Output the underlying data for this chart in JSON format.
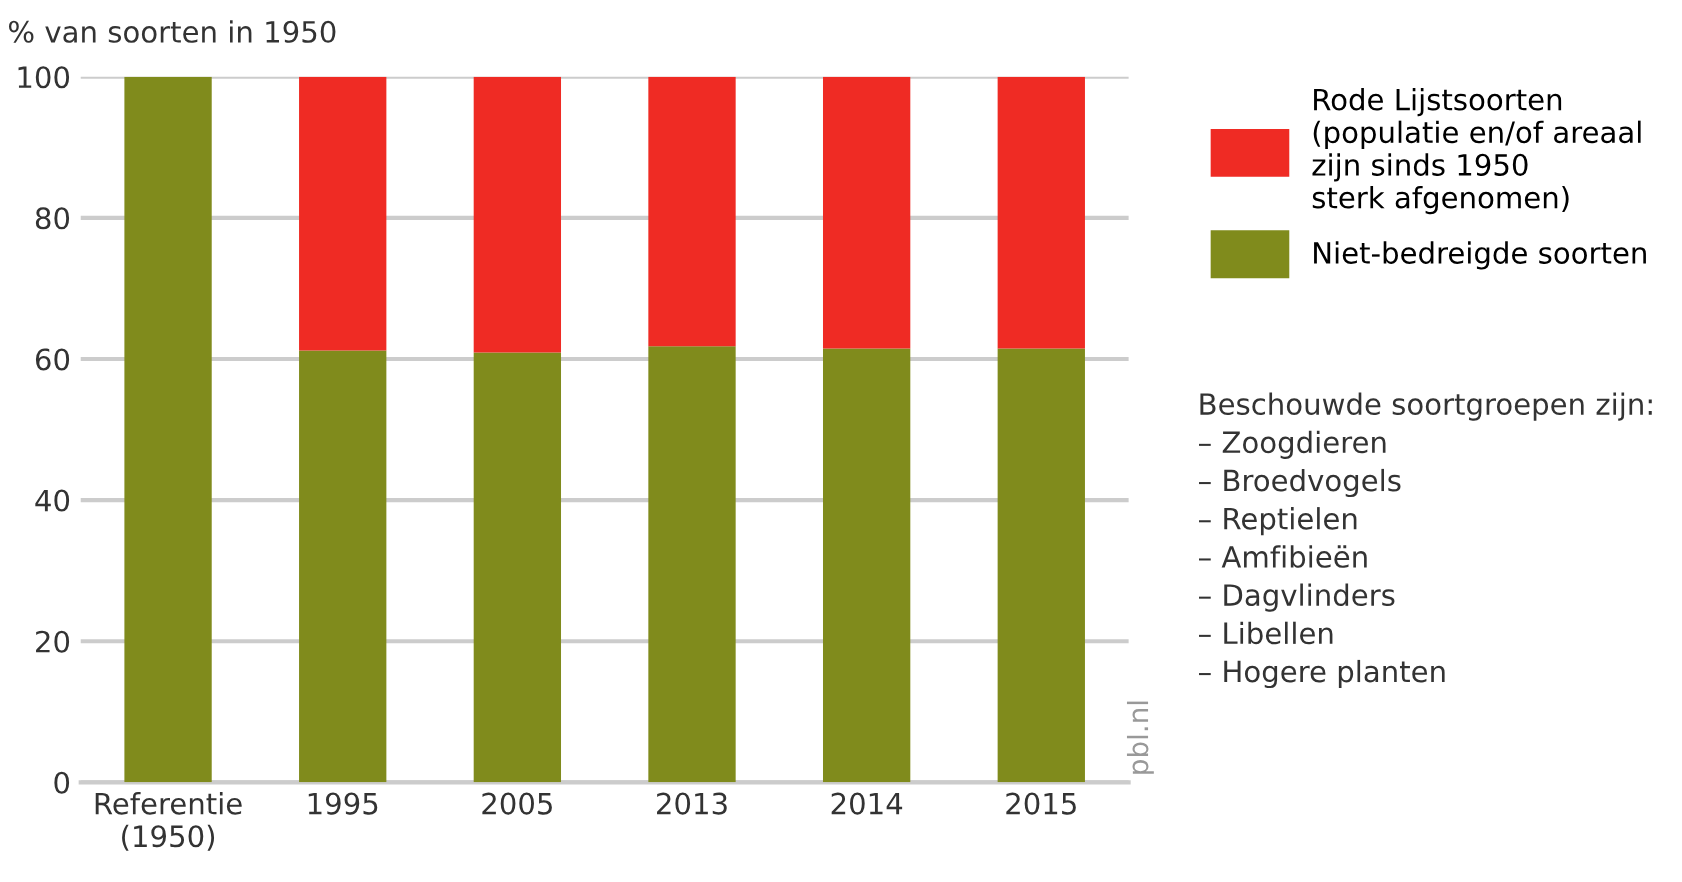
{
  "chart_data": {
    "type": "bar",
    "stacked": true,
    "ylabel": "% van soorten in 1950",
    "categories": [
      "Referentie\n(1950)",
      "1995",
      "2005",
      "2013",
      "2014",
      "2015"
    ],
    "series": [
      {
        "name": "Niet-bedreigde soorten",
        "color": "#808b1c",
        "values": [
          100,
          61.2,
          60.9,
          61.8,
          61.5,
          61.5
        ]
      },
      {
        "name": "Rode Lijstsoorten\n(populatie en/of areaal\nzijn sinds 1950\nsterk afgenomen)",
        "color": "#ef2b24",
        "values": [
          0,
          38.8,
          39.1,
          38.2,
          38.5,
          38.5
        ]
      }
    ],
    "ylim": [
      0,
      100
    ],
    "yticks": [
      0,
      20,
      40,
      60,
      80,
      100
    ],
    "grid": "y",
    "legend": "right",
    "annotations": [
      "Beschouwde soortgroepen zijn:\n– Zoogdieren\n– Broedvogels\n– Reptielen\n– Amfibieën\n– Dagvlinders\n– Libellen\n– Hogere planten",
      "pbl.nl"
    ]
  }
}
